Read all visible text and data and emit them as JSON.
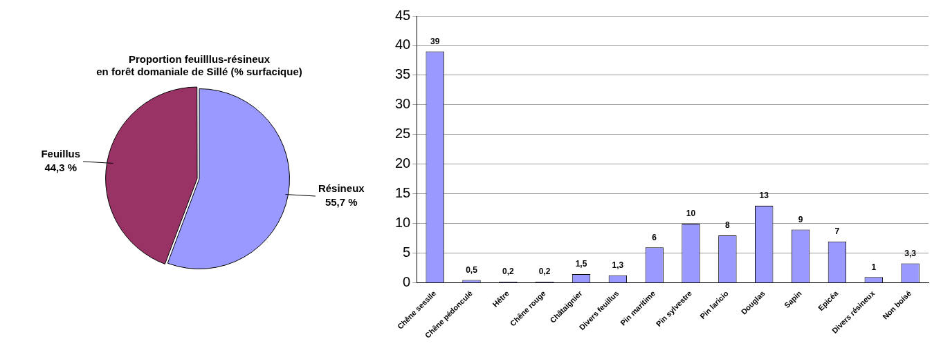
{
  "chart_data": [
    {
      "type": "pie",
      "title": "Proportion feuilllus-résineux\nen forêt domaniale de Sillé (% surfacique)",
      "categories": [
        "Résineux",
        "Feuillus"
      ],
      "values": [
        55.7,
        44.3
      ],
      "colors": [
        "#9999ff",
        "#993366"
      ],
      "value_labels": [
        "55,7 %",
        "44,3 %"
      ],
      "legend": false
    },
    {
      "type": "bar",
      "categories": [
        "Chêne sessile",
        "Chêne pédonculé",
        "Hêtre",
        "Chêne rouge",
        "Châtaignier",
        "Divers feuillus",
        "Pin maritime",
        "Pin sylvestre",
        "Pin laricio",
        "Douglas",
        "Sapin",
        "Epicéa",
        "Divers résineux",
        "Non boisé"
      ],
      "values": [
        39,
        0.5,
        0.2,
        0.2,
        1.5,
        1.3,
        6,
        10,
        8,
        13,
        9,
        7,
        1,
        3.3
      ],
      "color": "#9999ff",
      "value_labels": [
        "39",
        "0,5",
        "0,2",
        "0,2",
        "1,5",
        "1,3",
        "6",
        "10",
        "8",
        "13",
        "9",
        "7",
        "1",
        "3,3"
      ],
      "ylim": [
        0,
        45
      ],
      "yticks": [
        0,
        5,
        10,
        15,
        20,
        25,
        30,
        35,
        40,
        45
      ],
      "grid": "y",
      "legend": false
    }
  ]
}
